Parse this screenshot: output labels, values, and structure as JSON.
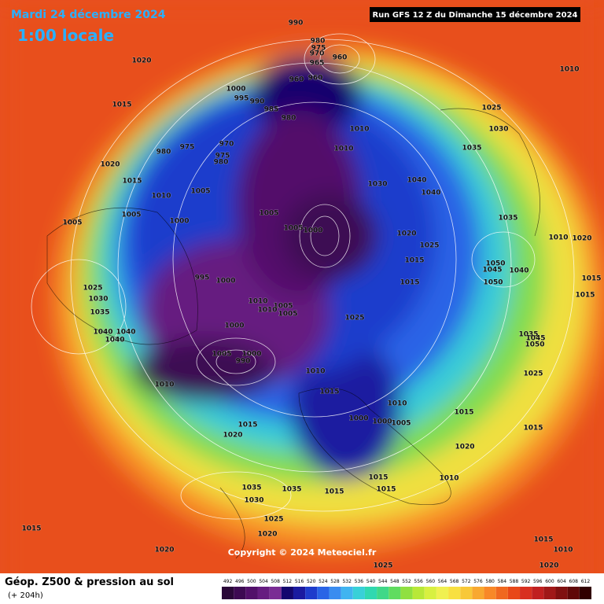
{
  "header": {
    "title": "Mardi 24 décembre 2024",
    "subtitle": "1:00 locale",
    "run": "Run GFS 12 Z du Dimanche 15 décembre 2024"
  },
  "footer": {
    "product": "Géop. Z500 & pression au sol",
    "lead": "(+ 204h)",
    "copyright": "Copyright © 2024 Meteociel.fr"
  },
  "legend": {
    "values": [
      "492",
      "496",
      "500",
      "504",
      "508",
      "512",
      "516",
      "520",
      "524",
      "528",
      "532",
      "536",
      "540",
      "544",
      "548",
      "552",
      "556",
      "560",
      "564",
      "568",
      "572",
      "576",
      "580",
      "584",
      "588",
      "592",
      "596",
      "600",
      "604",
      "608",
      "612"
    ],
    "colors": [
      "#2a0838",
      "#3d0a52",
      "#52106a",
      "#661c80",
      "#7a2c94",
      "#14066e",
      "#1a1aa0",
      "#1e3ccc",
      "#2a64e6",
      "#3a8cf0",
      "#40b4f0",
      "#38d0d8",
      "#30d8b0",
      "#40d888",
      "#60dc60",
      "#90e040",
      "#b8e838",
      "#d8f040",
      "#f0f050",
      "#f8e040",
      "#f8c838",
      "#f8a830",
      "#f88828",
      "#f06820",
      "#e84818",
      "#d83020",
      "#c02020",
      "#a01818",
      "#801010",
      "#600808",
      "#300000"
    ]
  },
  "isobar_labels": [
    "990",
    "980",
    "975",
    "970",
    "965",
    "960",
    "960",
    "960",
    "1020",
    "1015",
    "1000",
    "995",
    "990",
    "985",
    "980",
    "970",
    "975",
    "980",
    "975",
    "980",
    "1010",
    "1010",
    "1020",
    "1015",
    "1010",
    "1005",
    "1005",
    "1000",
    "1005",
    "1005",
    "1005",
    "1000",
    "1030",
    "1040",
    "1040",
    "1025",
    "1030",
    "1035",
    "1035",
    "1010",
    "1020",
    "1020",
    "1025",
    "1015",
    "1040",
    "1050",
    "1045",
    "1050",
    "1015",
    "995",
    "1000",
    "1010",
    "1005",
    "1010",
    "1005",
    "1025",
    "1025",
    "1030",
    "1035",
    "1040",
    "1040",
    "1040",
    "1000",
    "1005",
    "1000",
    "990",
    "1010",
    "1010",
    "1015",
    "1010",
    "1000",
    "1000",
    "1005",
    "1015",
    "1015",
    "1025",
    "1020",
    "1020",
    "1015",
    "1010",
    "1015",
    "1015",
    "1035",
    "1030",
    "1035",
    "1015",
    "1025",
    "1020",
    "1015",
    "1020",
    "1025",
    "1010",
    "1010",
    "1020",
    "1015",
    "1015",
    "1015",
    "1035",
    "1050",
    "1045"
  ]
}
